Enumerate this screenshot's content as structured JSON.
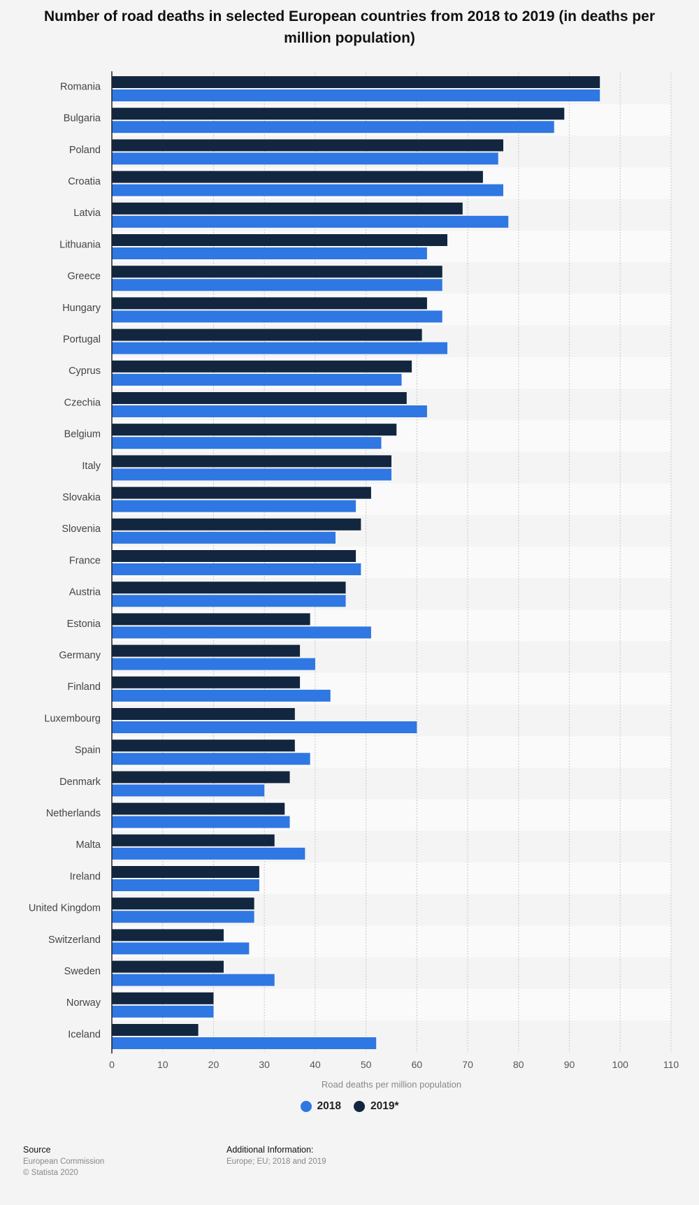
{
  "chart_data": {
    "type": "bar",
    "orientation": "horizontal",
    "title": "Number of road deaths in selected European countries from 2018 to 2019 (in deaths per million population)",
    "xlabel": "Road deaths per million population",
    "ylabel": "",
    "xlim": [
      0,
      110
    ],
    "xticks": [
      0,
      10,
      20,
      30,
      40,
      50,
      60,
      70,
      80,
      90,
      100,
      110
    ],
    "grid": true,
    "legend_position": "bottom",
    "categories": [
      "Romania",
      "Bulgaria",
      "Poland",
      "Croatia",
      "Latvia",
      "Lithuania",
      "Greece",
      "Hungary",
      "Portugal",
      "Cyprus",
      "Czechia",
      "Belgium",
      "Italy",
      "Slovakia",
      "Slovenia",
      "France",
      "Austria",
      "Estonia",
      "Germany",
      "Finland",
      "Luxembourg",
      "Spain",
      "Denmark",
      "Netherlands",
      "Malta",
      "Ireland",
      "United Kingdom",
      "Switzerland",
      "Sweden",
      "Norway",
      "Iceland"
    ],
    "series": [
      {
        "name": "2019*",
        "color": "#12263f",
        "values": [
          96,
          89,
          77,
          73,
          69,
          66,
          65,
          62,
          61,
          59,
          58,
          56,
          55,
          51,
          49,
          48,
          46,
          39,
          37,
          37,
          36,
          36,
          35,
          34,
          32,
          29,
          28,
          22,
          22,
          20,
          17
        ]
      },
      {
        "name": "2018",
        "color": "#2f77e2",
        "values": [
          96,
          87,
          76,
          77,
          78,
          62,
          65,
          65,
          66,
          57,
          62,
          53,
          55,
          48,
          44,
          49,
          46,
          51,
          40,
          43,
          60,
          39,
          30,
          35,
          38,
          29,
          28,
          27,
          32,
          20,
          52
        ]
      }
    ]
  },
  "legend": [
    {
      "label": "2018",
      "color": "#2f77e2"
    },
    {
      "label": "2019*",
      "color": "#12263f"
    }
  ],
  "footer": {
    "source_heading": "Source",
    "source_lines": [
      "European Commission",
      "© Statista 2020"
    ],
    "info_heading": "Additional Information:",
    "info_lines": [
      "Europe; EU; 2018 and 2019"
    ]
  }
}
